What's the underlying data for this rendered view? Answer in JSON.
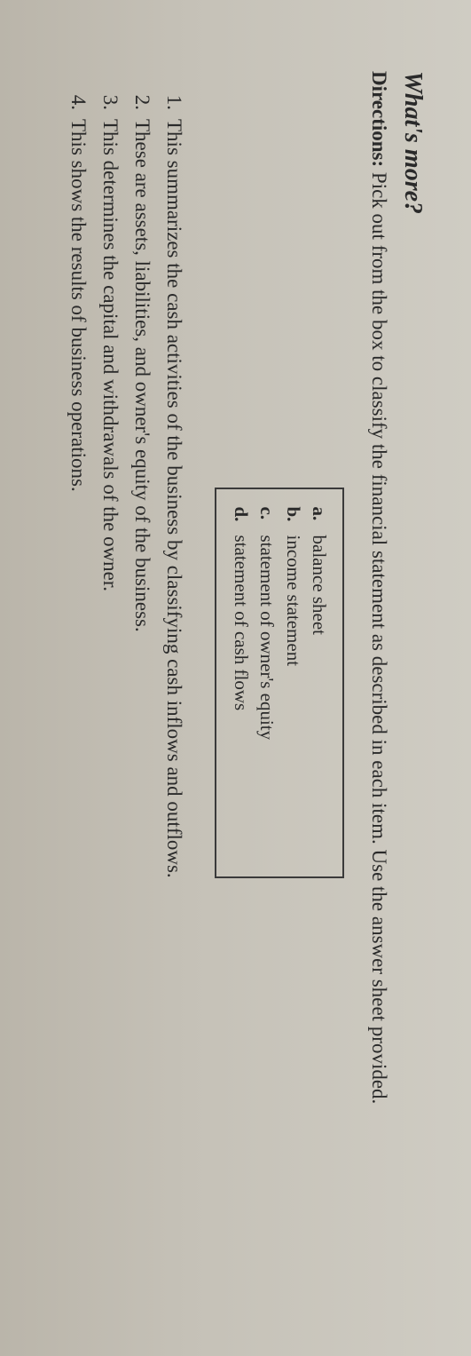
{
  "title": "What's more?",
  "directions_label": "Directions:",
  "directions_text": "Pick out from the box to classify the financial statement as described in each item. Use the answer sheet provided.",
  "options": [
    {
      "letter": "a.",
      "text": "balance sheet"
    },
    {
      "letter": "b.",
      "text": "income statement"
    },
    {
      "letter": "c.",
      "text": "statement of owner's equity"
    },
    {
      "letter": "d.",
      "text": "statement of cash flows"
    }
  ],
  "questions": [
    {
      "num": "1.",
      "text": "This summarizes the cash activities of the business by classifying cash inflows and outflows."
    },
    {
      "num": "2.",
      "text": "These are assets, liabilities, and owner's equity of the business."
    },
    {
      "num": "3.",
      "text": "This determines the capital and withdrawals of the owner."
    },
    {
      "num": "4.",
      "text": "This shows the results of business operations."
    }
  ],
  "colors": {
    "background": "#c8c4bb",
    "text": "#2a2a2a",
    "border": "#3a3a3a"
  },
  "typography": {
    "title_fontsize": 28,
    "body_fontsize": 23,
    "option_fontsize": 21,
    "font_family": "Georgia, Times New Roman, serif"
  }
}
